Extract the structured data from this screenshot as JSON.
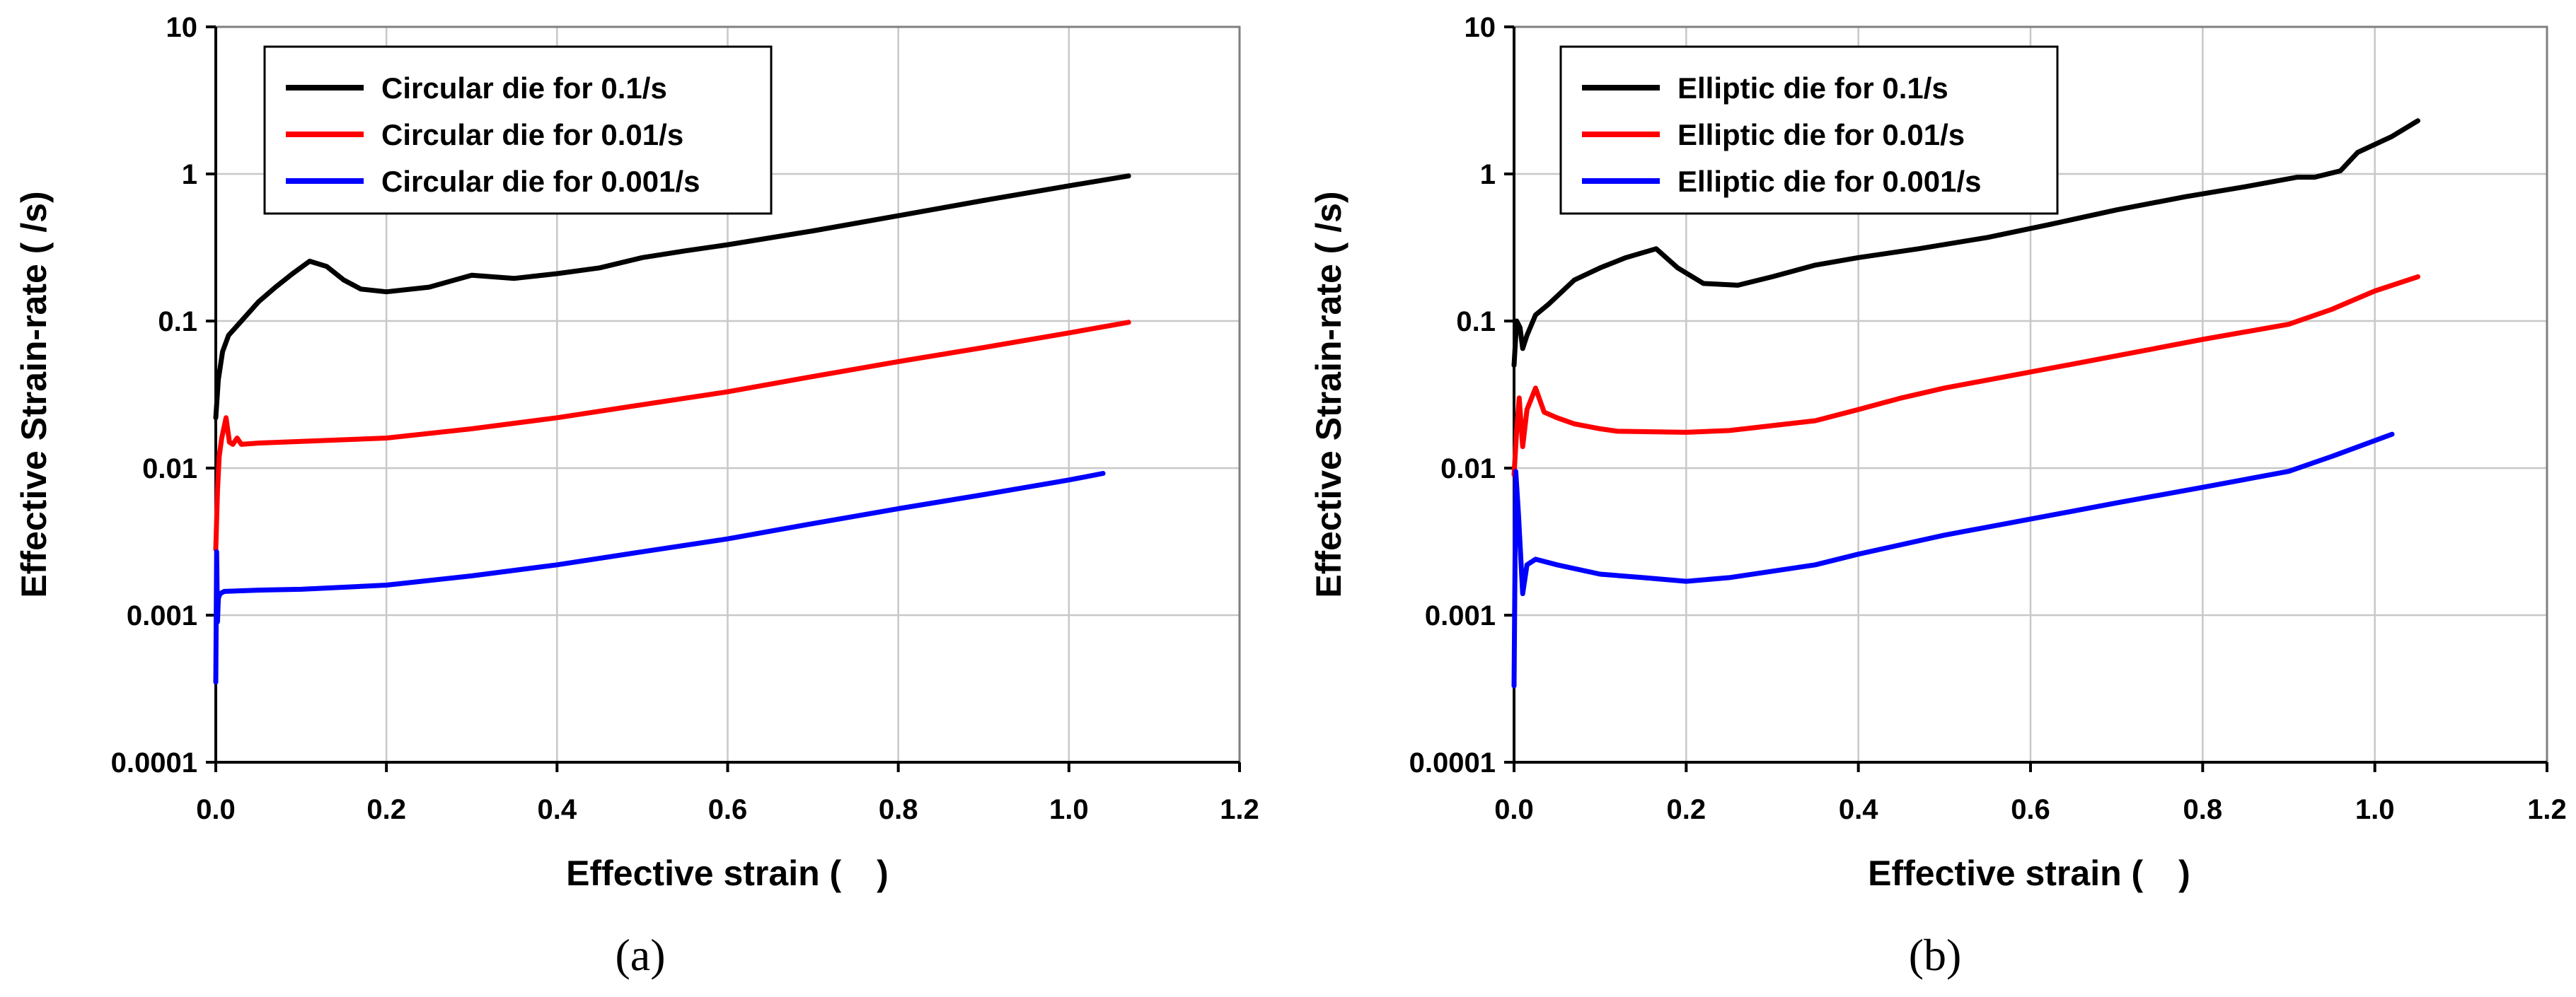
{
  "chart_data": [
    {
      "type": "line",
      "panel_label": "(a)",
      "xlabel": "Effective strain (　)",
      "ylabel": "Effective Strain-rate ( /s)",
      "xlim": [
        0,
        1.2
      ],
      "ylim": [
        0.0001,
        10
      ],
      "yscale": "log",
      "x_ticks": [
        "0.0",
        "0.2",
        "0.4",
        "0.6",
        "0.8",
        "1.0",
        "1.2"
      ],
      "y_ticks": [
        "0.0001",
        "0.001",
        "0.01",
        "0.1",
        "1",
        "10"
      ],
      "grid": true,
      "legend_position": "top-left",
      "series": [
        {
          "name": "Circular die for 0.1/s",
          "color": "#000000",
          "points": [
            [
              0.0,
              0.022
            ],
            [
              0.003,
              0.04
            ],
            [
              0.008,
              0.062
            ],
            [
              0.015,
              0.08
            ],
            [
              0.03,
              0.1
            ],
            [
              0.05,
              0.135
            ],
            [
              0.07,
              0.17
            ],
            [
              0.09,
              0.21
            ],
            [
              0.11,
              0.255
            ],
            [
              0.13,
              0.235
            ],
            [
              0.15,
              0.19
            ],
            [
              0.17,
              0.165
            ],
            [
              0.2,
              0.158
            ],
            [
              0.25,
              0.17
            ],
            [
              0.3,
              0.205
            ],
            [
              0.35,
              0.195
            ],
            [
              0.4,
              0.21
            ],
            [
              0.45,
              0.23
            ],
            [
              0.5,
              0.27
            ],
            [
              0.55,
              0.3
            ],
            [
              0.6,
              0.33
            ],
            [
              0.7,
              0.41
            ],
            [
              0.8,
              0.52
            ],
            [
              0.9,
              0.66
            ],
            [
              1.0,
              0.83
            ],
            [
              1.07,
              0.97
            ]
          ]
        },
        {
          "name": "Circular die for 0.01/s",
          "color": "#ff0000",
          "points": [
            [
              0.0,
              0.0028
            ],
            [
              0.002,
              0.007
            ],
            [
              0.004,
              0.012
            ],
            [
              0.007,
              0.016
            ],
            [
              0.012,
              0.022
            ],
            [
              0.016,
              0.015
            ],
            [
              0.02,
              0.0145
            ],
            [
              0.025,
              0.016
            ],
            [
              0.03,
              0.0145
            ],
            [
              0.05,
              0.0148
            ],
            [
              0.1,
              0.0152
            ],
            [
              0.2,
              0.016
            ],
            [
              0.3,
              0.0185
            ],
            [
              0.4,
              0.022
            ],
            [
              0.5,
              0.027
            ],
            [
              0.6,
              0.033
            ],
            [
              0.7,
              0.042
            ],
            [
              0.8,
              0.053
            ],
            [
              0.9,
              0.066
            ],
            [
              1.0,
              0.083
            ],
            [
              1.07,
              0.098
            ]
          ]
        },
        {
          "name": "Circular die for 0.001/s",
          "color": "#0000ff",
          "points": [
            [
              0.0,
              0.00035
            ],
            [
              0.001,
              0.0027
            ],
            [
              0.002,
              0.0009
            ],
            [
              0.003,
              0.0013
            ],
            [
              0.005,
              0.0014
            ],
            [
              0.01,
              0.00145
            ],
            [
              0.05,
              0.00148
            ],
            [
              0.1,
              0.0015
            ],
            [
              0.2,
              0.0016
            ],
            [
              0.3,
              0.00185
            ],
            [
              0.4,
              0.0022
            ],
            [
              0.5,
              0.0027
            ],
            [
              0.6,
              0.0033
            ],
            [
              0.7,
              0.0042
            ],
            [
              0.8,
              0.0053
            ],
            [
              0.9,
              0.0066
            ],
            [
              1.0,
              0.0083
            ],
            [
              1.04,
              0.0092
            ]
          ]
        }
      ]
    },
    {
      "type": "line",
      "panel_label": "(b)",
      "xlabel": "Effective strain (　)",
      "ylabel": "Effective Strain-rate ( /s)",
      "xlim": [
        0,
        1.2
      ],
      "ylim": [
        0.0001,
        10
      ],
      "yscale": "log",
      "x_ticks": [
        "0.0",
        "0.2",
        "0.4",
        "0.6",
        "0.8",
        "1.0",
        "1.2"
      ],
      "y_ticks": [
        "0.0001",
        "0.001",
        "0.01",
        "0.1",
        "1",
        "10"
      ],
      "grid": true,
      "legend_position": "top-left",
      "series": [
        {
          "name": "Elliptic die for 0.1/s",
          "color": "#000000",
          "points": [
            [
              0.0,
              0.05
            ],
            [
              0.003,
              0.1
            ],
            [
              0.007,
              0.09
            ],
            [
              0.01,
              0.065
            ],
            [
              0.015,
              0.08
            ],
            [
              0.025,
              0.11
            ],
            [
              0.04,
              0.13
            ],
            [
              0.07,
              0.19
            ],
            [
              0.1,
              0.23
            ],
            [
              0.13,
              0.27
            ],
            [
              0.165,
              0.31
            ],
            [
              0.19,
              0.23
            ],
            [
              0.22,
              0.18
            ],
            [
              0.26,
              0.175
            ],
            [
              0.3,
              0.2
            ],
            [
              0.35,
              0.24
            ],
            [
              0.4,
              0.27
            ],
            [
              0.47,
              0.31
            ],
            [
              0.55,
              0.37
            ],
            [
              0.62,
              0.45
            ],
            [
              0.7,
              0.57
            ],
            [
              0.78,
              0.7
            ],
            [
              0.85,
              0.82
            ],
            [
              0.91,
              0.95
            ],
            [
              0.93,
              0.95
            ],
            [
              0.96,
              1.05
            ],
            [
              0.98,
              1.4
            ],
            [
              1.02,
              1.8
            ],
            [
              1.05,
              2.3
            ]
          ]
        },
        {
          "name": "Elliptic die for 0.01/s",
          "color": "#ff0000",
          "points": [
            [
              0.0,
              0.009
            ],
            [
              0.003,
              0.018
            ],
            [
              0.006,
              0.03
            ],
            [
              0.01,
              0.014
            ],
            [
              0.015,
              0.025
            ],
            [
              0.025,
              0.035
            ],
            [
              0.035,
              0.024
            ],
            [
              0.05,
              0.022
            ],
            [
              0.07,
              0.02
            ],
            [
              0.1,
              0.0185
            ],
            [
              0.12,
              0.0178
            ],
            [
              0.2,
              0.0175
            ],
            [
              0.25,
              0.018
            ],
            [
              0.35,
              0.021
            ],
            [
              0.4,
              0.025
            ],
            [
              0.45,
              0.03
            ],
            [
              0.5,
              0.035
            ],
            [
              0.6,
              0.045
            ],
            [
              0.7,
              0.058
            ],
            [
              0.8,
              0.075
            ],
            [
              0.9,
              0.095
            ],
            [
              0.95,
              0.12
            ],
            [
              1.0,
              0.16
            ],
            [
              1.05,
              0.2
            ]
          ]
        },
        {
          "name": "Elliptic die for 0.001/s",
          "color": "#0000ff",
          "points": [
            [
              0.0,
              0.00033
            ],
            [
              0.002,
              0.0095
            ],
            [
              0.005,
              0.005
            ],
            [
              0.01,
              0.0014
            ],
            [
              0.015,
              0.0022
            ],
            [
              0.025,
              0.0024
            ],
            [
              0.05,
              0.0022
            ],
            [
              0.1,
              0.0019
            ],
            [
              0.15,
              0.0018
            ],
            [
              0.2,
              0.0017
            ],
            [
              0.25,
              0.0018
            ],
            [
              0.35,
              0.0022
            ],
            [
              0.4,
              0.0026
            ],
            [
              0.5,
              0.0035
            ],
            [
              0.6,
              0.0045
            ],
            [
              0.7,
              0.0058
            ],
            [
              0.8,
              0.0074
            ],
            [
              0.9,
              0.0095
            ],
            [
              0.95,
              0.012
            ],
            [
              1.02,
              0.017
            ]
          ]
        }
      ]
    }
  ]
}
